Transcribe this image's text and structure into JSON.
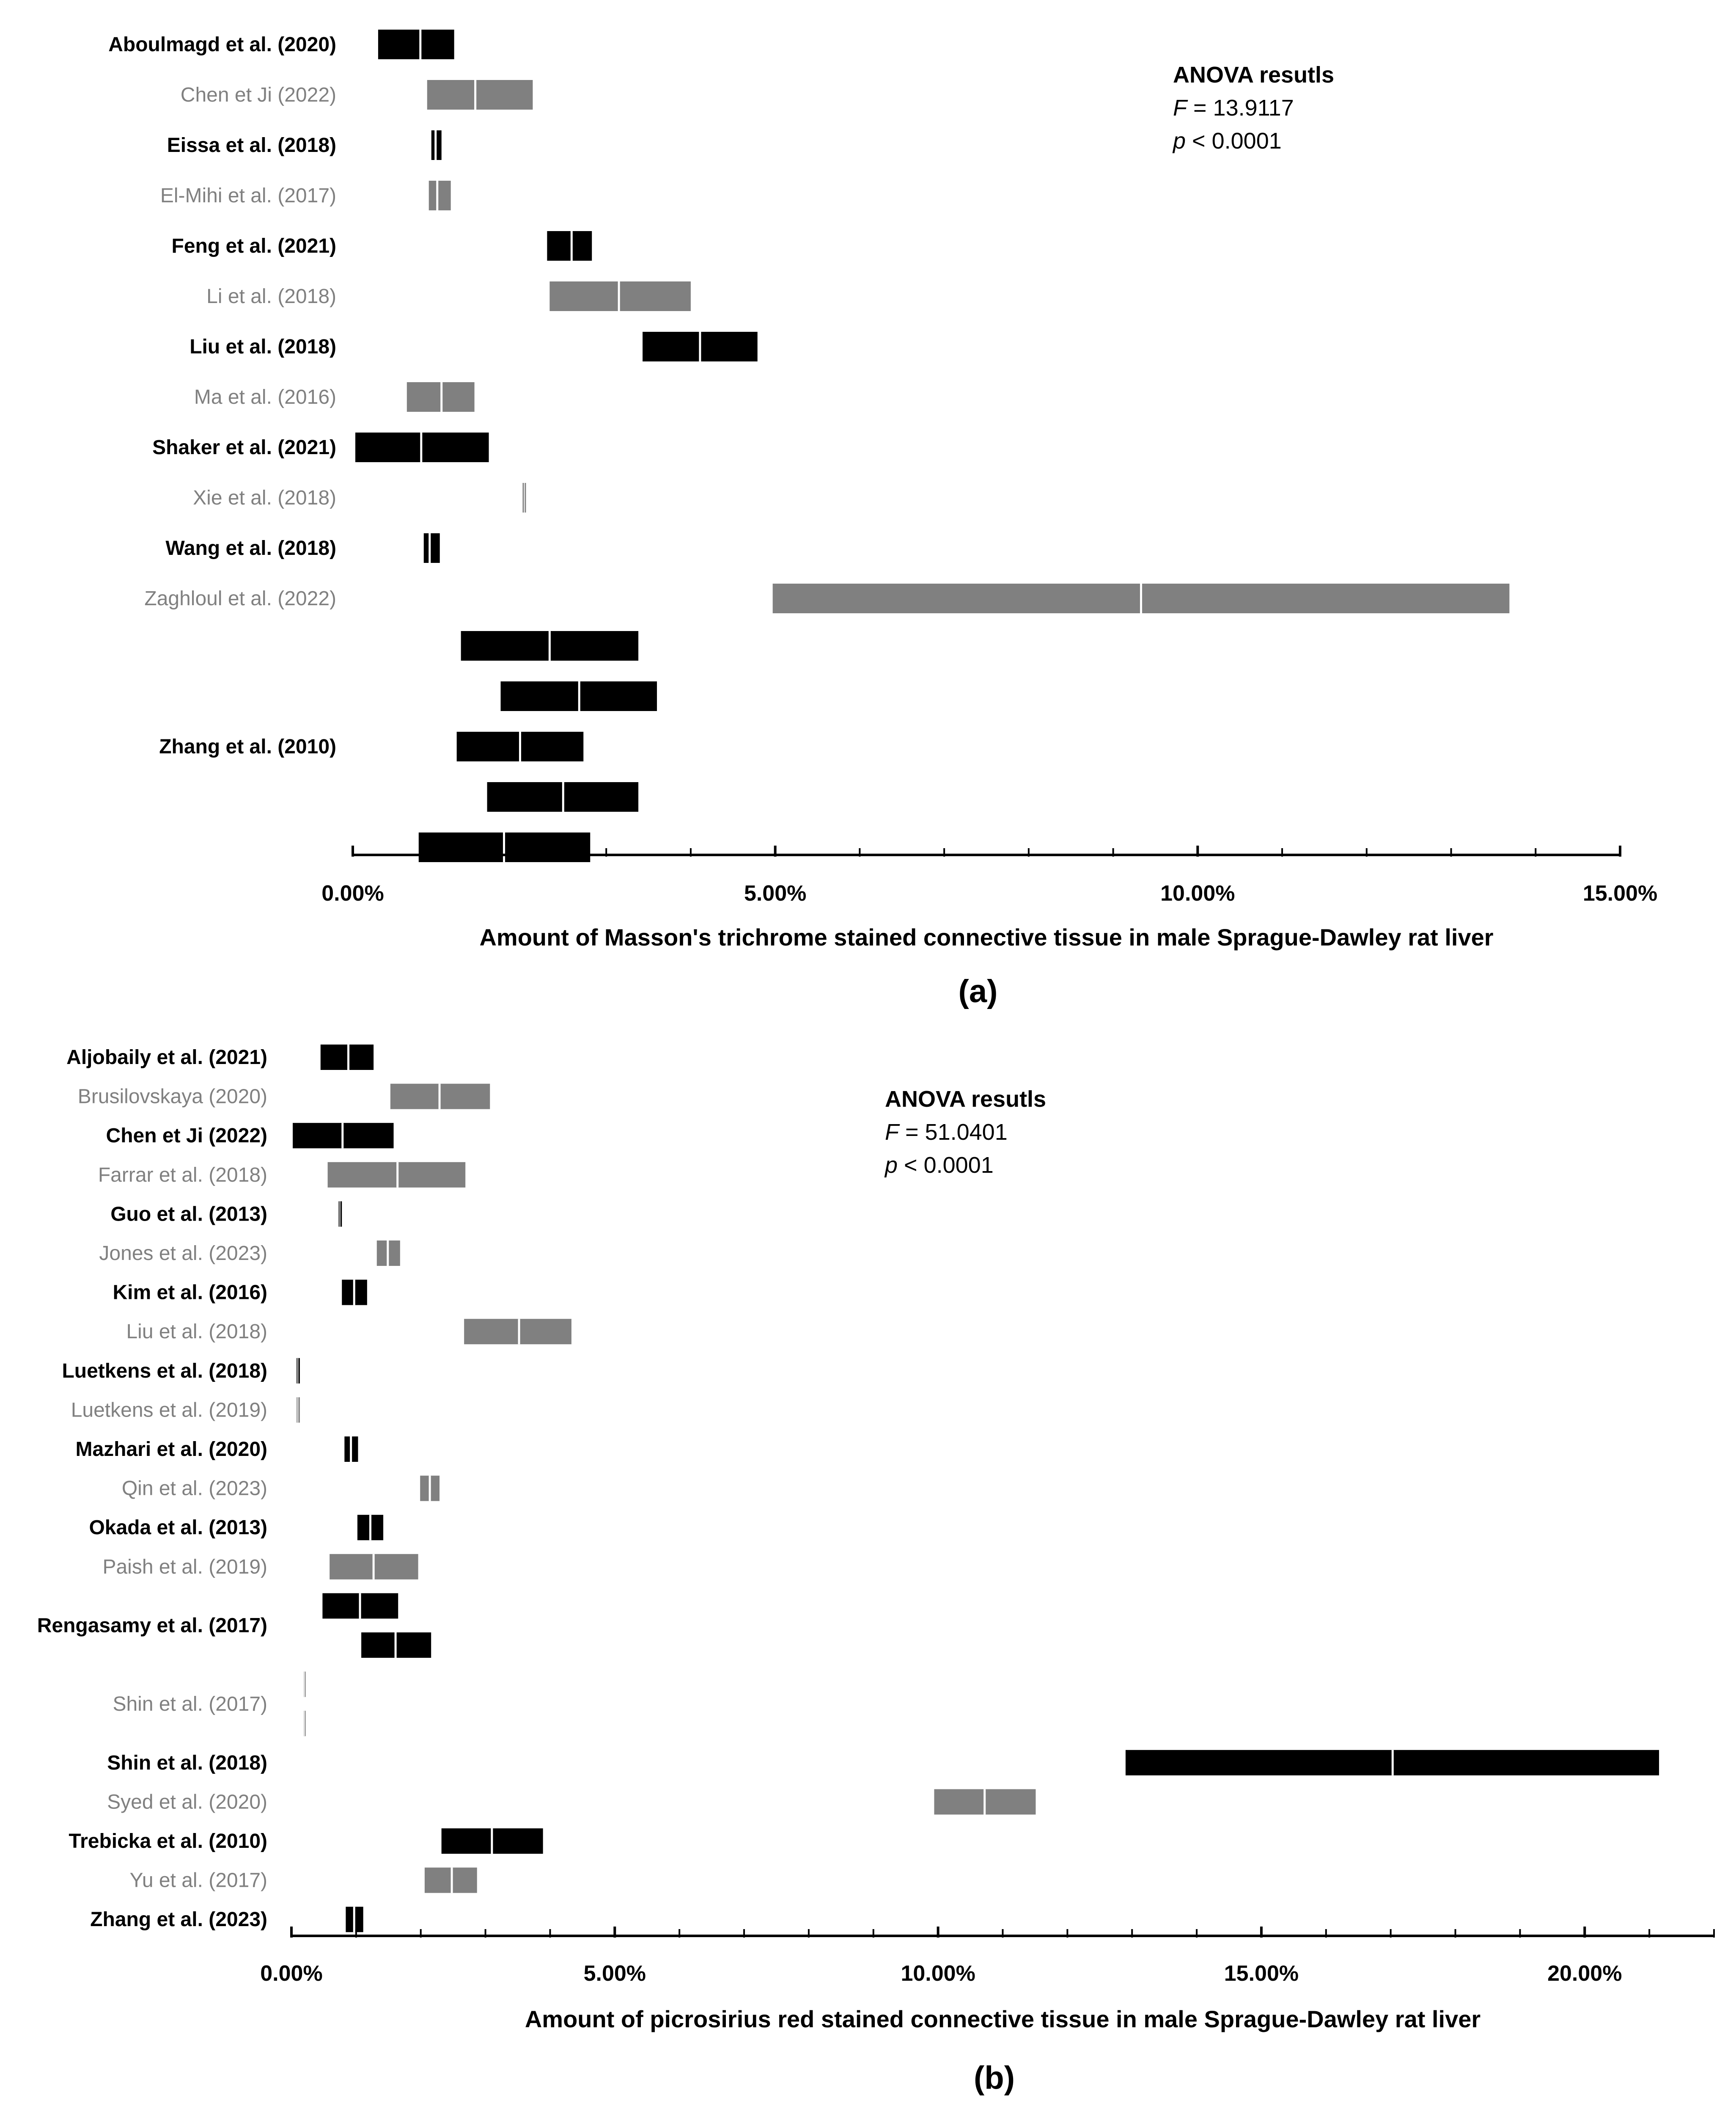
{
  "colors": {
    "dark": "#000000",
    "light": "#808080",
    "median": "#ffffff"
  },
  "chart_data": [
    {
      "type": "bar",
      "subtype": "horizontal-range-with-median",
      "panel_label": "(a)",
      "xlabel": "Amount of Masson's trichrome stained connective tissue in male Sprague-Dawley rat liver",
      "xlim": [
        0,
        0.15
      ],
      "xticks": [
        0,
        0.05,
        0.1,
        0.15
      ],
      "xtick_labels": [
        "0.00%",
        "5.00%",
        "10.00%",
        "15.00%"
      ],
      "annotation": {
        "title": "ANOVA resutls",
        "stat1_symbol": "F",
        "stat1_rest": " = 13.9117",
        "stat2_symbol": "p",
        "stat2_rest": " < 0.0001"
      },
      "studies": [
        {
          "label": "Aboulmagd et al. (2020)",
          "shade": "dark",
          "ranges": [
            [
              0.003,
              0.008,
              0.012
            ]
          ]
        },
        {
          "label": "Chen et Ji (2022)",
          "shade": "light",
          "ranges": [
            [
              0.0088,
              0.0145,
              0.0213
            ]
          ]
        },
        {
          "label": "Eissa et al. (2018)",
          "shade": "dark",
          "ranges": [
            [
              0.0093,
              0.0098,
              0.0105
            ]
          ]
        },
        {
          "label": "El-Mihi et al. (2017)",
          "shade": "light",
          "ranges": [
            [
              0.009,
              0.01,
              0.0116
            ]
          ]
        },
        {
          "label": "Feng et al. (2021)",
          "shade": "dark",
          "ranges": [
            [
              0.023,
              0.0259,
              0.0283
            ]
          ]
        },
        {
          "label": "Li et al. (2018)",
          "shade": "light",
          "ranges": [
            [
              0.0233,
              0.0315,
              0.04
            ]
          ]
        },
        {
          "label": "Liu et al. (2018)",
          "shade": "dark",
          "ranges": [
            [
              0.0343,
              0.0411,
              0.0479
            ]
          ]
        },
        {
          "label": "Ma et al. (2016)",
          "shade": "light",
          "ranges": [
            [
              0.0064,
              0.0105,
              0.0144
            ]
          ]
        },
        {
          "label": "Shaker et al. (2021)",
          "shade": "dark",
          "ranges": [
            [
              0.0003,
              0.0081,
              0.0161
            ]
          ]
        },
        {
          "label": "Xie et al. (2018)",
          "shade": "light",
          "ranges": [
            [
              0.0201,
              0.0203,
              0.0205
            ]
          ]
        },
        {
          "label": "Wang et al. (2018)",
          "shade": "dark",
          "ranges": [
            [
              0.0084,
              0.0091,
              0.0103
            ]
          ]
        },
        {
          "label": "Zaghloul et al. (2022)",
          "shade": "light",
          "ranges": [
            [
              0.0497,
              0.0933,
              0.1369
            ]
          ]
        },
        {
          "label": "Zhang et al. (2010)",
          "shade": "dark",
          "ranges": [
            [
              0.0128,
              0.0233,
              0.0338
            ],
            [
              0.0175,
              0.0268,
              0.036
            ],
            [
              0.0123,
              0.0198,
              0.0273
            ],
            [
              0.0159,
              0.0249,
              0.0338
            ],
            [
              0.0078,
              0.0179,
              0.0281
            ]
          ]
        }
      ]
    },
    {
      "type": "bar",
      "subtype": "horizontal-range-with-median",
      "panel_label": "(b)",
      "xlabel": "Amount of picrosirius red stained connective tissue in male Sprague-Dawley rat liver",
      "xlim": [
        0,
        0.22
      ],
      "xticks": [
        0,
        0.05,
        0.1,
        0.15,
        0.2
      ],
      "xtick_labels": [
        "0.00%",
        "5.00%",
        "10.00%",
        "15.00%",
        "20.00%"
      ],
      "annotation": {
        "title": "ANOVA resutls",
        "stat1_symbol": "F",
        "stat1_rest": " = 51.0401",
        "stat2_symbol": "p",
        "stat2_rest": " < 0.0001"
      },
      "studies": [
        {
          "label": "Aljobaily et al. (2021)",
          "shade": "dark",
          "ranges": [
            [
              0.0045,
              0.0088,
              0.0127
            ]
          ]
        },
        {
          "label": "Brusilovskaya (2020)",
          "shade": "light",
          "ranges": [
            [
              0.0153,
              0.0229,
              0.0307
            ]
          ]
        },
        {
          "label": "Chen et Ji (2022)",
          "shade": "dark",
          "ranges": [
            [
              0.0002,
              0.0079,
              0.0158
            ]
          ]
        },
        {
          "label": "Farrar et al. (2018)",
          "shade": "light",
          "ranges": [
            [
              0.0056,
              0.0164,
              0.0269
            ]
          ]
        },
        {
          "label": "Guo et al. (2013)",
          "shade": "dark",
          "ranges": [
            [
              0.0073,
              0.0075,
              0.0078
            ]
          ]
        },
        {
          "label": "Jones et al. (2023)",
          "shade": "light",
          "ranges": [
            [
              0.0132,
              0.0149,
              0.0168
            ]
          ]
        },
        {
          "label": "Kim et al. (2016)",
          "shade": "dark",
          "ranges": [
            [
              0.0078,
              0.0097,
              0.0117
            ]
          ]
        },
        {
          "label": "Liu et al. (2018)",
          "shade": "light",
          "ranges": [
            [
              0.0267,
              0.0352,
              0.0433
            ]
          ]
        },
        {
          "label": "Luetkens et al. (2018)",
          "shade": "dark",
          "ranges": [
            [
              0.0008,
              0.001,
              0.0013
            ]
          ]
        },
        {
          "label": "Luetkens et al. (2019)",
          "shade": "light",
          "ranges": [
            [
              0.0008,
              0.001,
              0.0013
            ]
          ]
        },
        {
          "label": "Mazhari et al. (2020)",
          "shade": "dark",
          "ranges": [
            [
              0.0082,
              0.0092,
              0.0103
            ]
          ]
        },
        {
          "label": "Qin et al. (2023)",
          "shade": "light",
          "ranges": [
            [
              0.0199,
              0.0214,
              0.0229
            ]
          ]
        },
        {
          "label": "Okada et al. (2013)",
          "shade": "dark",
          "ranges": [
            [
              0.0102,
              0.0122,
              0.0142
            ]
          ]
        },
        {
          "label": "Paish et al. (2019)",
          "shade": "light",
          "ranges": [
            [
              0.0059,
              0.0127,
              0.0196
            ]
          ]
        },
        {
          "label": "Rengasamy et al. (2017)",
          "shade": "dark",
          "ranges": [
            [
              0.0048,
              0.0106,
              0.0165
            ],
            [
              0.0108,
              0.0161,
              0.0216
            ]
          ]
        },
        {
          "label": "Shin et al. (2017)",
          "shade": "light",
          "ranges": [
            [
              0.0019,
              0.002,
              0.0022
            ],
            [
              0.0019,
              0.002,
              0.0022
            ]
          ]
        },
        {
          "label": "Shin et al. (2018)",
          "shade": "dark",
          "ranges": [
            [
              0.129,
              0.1703,
              0.2115
            ]
          ]
        },
        {
          "label": "Syed et al. (2020)",
          "shade": "light",
          "ranges": [
            [
              0.0994,
              0.1072,
              0.1151
            ]
          ]
        },
        {
          "label": "Trebicka et al. (2010)",
          "shade": "dark",
          "ranges": [
            [
              0.0232,
              0.031,
              0.0389
            ]
          ]
        },
        {
          "label": "Yu et al. (2017)",
          "shade": "light",
          "ranges": [
            [
              0.0206,
              0.0248,
              0.0287
            ]
          ]
        },
        {
          "label": "Zhang et al. (2023)",
          "shade": "dark",
          "ranges": [
            [
              0.0084,
              0.0097,
              0.0111
            ]
          ]
        }
      ]
    }
  ]
}
